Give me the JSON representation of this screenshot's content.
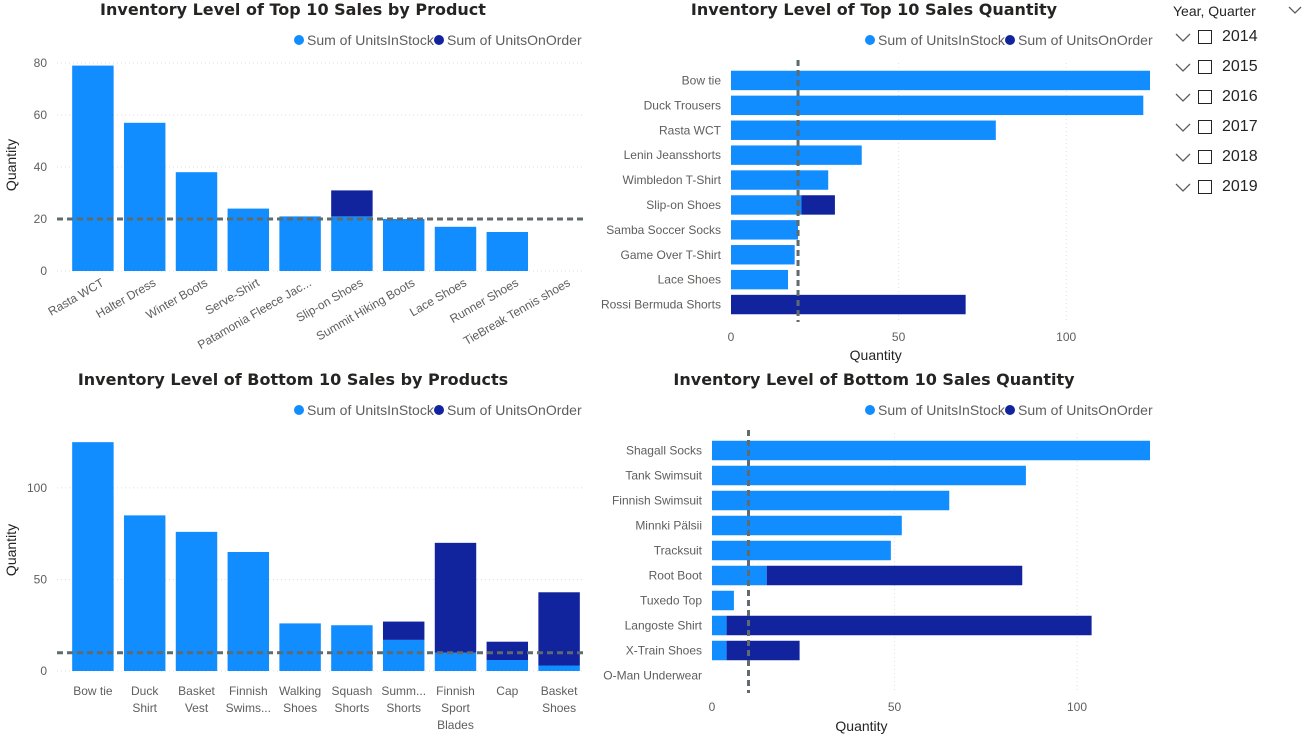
{
  "colors": {
    "stock": "#118DFF",
    "order": "#12239E",
    "axis": "#605E5C",
    "grid": "#E1DFDD",
    "refline": "#5F6B6D"
  },
  "slicer": {
    "header": "Year, Quarter",
    "items": [
      "2014",
      "2015",
      "2016",
      "2017",
      "2018",
      "2019"
    ]
  },
  "chart_data": [
    {
      "type": "bar",
      "orientation": "vertical",
      "stacked": true,
      "title": "Inventory Level of Top 10 Sales by Product",
      "legend": [
        "Sum of UnitsInStock",
        "Sum of UnitsOnOrder"
      ],
      "ylabel": "Quantity",
      "xlabel": "",
      "ylim": [
        0,
        80
      ],
      "yticks": [
        0,
        20,
        40,
        60,
        80
      ],
      "gridlines": true,
      "reference_line": 20,
      "categories": [
        "Rasta WCT",
        "Halter Dress",
        "Winter Boots",
        "Serve-Shirt",
        "Patamonia Fleece Jac...",
        "Slip-on Shoes",
        "Summit Hiking Boots",
        "Lace Shoes",
        "Runner Shoes",
        "TieBreak Tennis shoes"
      ],
      "series": [
        {
          "name": "Sum of UnitsInStock",
          "values": [
            79,
            57,
            38,
            24,
            21,
            21,
            20,
            17,
            15,
            0
          ]
        },
        {
          "name": "Sum of UnitsOnOrder",
          "values": [
            0,
            0,
            0,
            0,
            0,
            10,
            0,
            0,
            0,
            0
          ]
        }
      ]
    },
    {
      "type": "bar",
      "orientation": "horizontal",
      "stacked": true,
      "title": "Inventory Level of Top 10 Sales Quantity",
      "legend": [
        "Sum of UnitsInStock",
        "Sum of UnitsOnOrder"
      ],
      "xlabel": "Quantity",
      "ylabel": "",
      "xlim": [
        0,
        125
      ],
      "xticks": [
        0,
        50,
        100
      ],
      "gridlines": true,
      "reference_line": 20,
      "categories": [
        "Bow tie",
        "Duck Trousers",
        "Rasta WCT",
        "Lenin Jeansshorts",
        "Wimbledon T-Shirt",
        "Slip-on Shoes",
        "Samba Soccer Socks",
        "Game Over T-Shirt",
        "Lace Shoes",
        "Rossi Bermuda Shorts"
      ],
      "series": [
        {
          "name": "Sum of UnitsInStock",
          "values": [
            125,
            123,
            79,
            39,
            29,
            21,
            20,
            19,
            17,
            0
          ]
        },
        {
          "name": "Sum of UnitsOnOrder",
          "values": [
            0,
            0,
            0,
            0,
            0,
            10,
            0,
            0,
            0,
            70
          ]
        }
      ]
    },
    {
      "type": "bar",
      "orientation": "vertical",
      "stacked": true,
      "title": "Inventory Level of Bottom 10 Sales by Products",
      "legend": [
        "Sum of UnitsInStock",
        "Sum of UnitsOnOrder"
      ],
      "ylabel": "Quantity",
      "xlabel": "",
      "ylim": [
        0,
        130
      ],
      "yticks": [
        0,
        50,
        100
      ],
      "gridlines": true,
      "reference_line": 10,
      "categories": [
        [
          "Bow tie"
        ],
        [
          "Duck",
          "Shirt"
        ],
        [
          "Basket",
          "Vest"
        ],
        [
          "Finnish",
          "Swims..."
        ],
        [
          "Walking",
          "Shoes"
        ],
        [
          "Squash",
          "Shorts"
        ],
        [
          "Summ...",
          "Shorts"
        ],
        [
          "Finnish",
          "Sport",
          "Blades"
        ],
        [
          "Cap"
        ],
        [
          "Basket",
          "Shoes"
        ]
      ],
      "series": [
        {
          "name": "Sum of UnitsInStock",
          "values": [
            125,
            85,
            76,
            65,
            26,
            25,
            17,
            10,
            6,
            3
          ]
        },
        {
          "name": "Sum of UnitsOnOrder",
          "values": [
            0,
            0,
            0,
            0,
            0,
            0,
            10,
            60,
            10,
            40
          ]
        }
      ]
    },
    {
      "type": "bar",
      "orientation": "horizontal",
      "stacked": true,
      "title": "Inventory Level of Bottom 10 Sales Quantity",
      "legend": [
        "Sum of UnitsInStock",
        "Sum of UnitsOnOrder"
      ],
      "xlabel": "Quantity",
      "ylabel": "",
      "xlim": [
        0,
        120
      ],
      "xticks": [
        0,
        50,
        100
      ],
      "gridlines": true,
      "reference_line": 10,
      "categories": [
        "Shagall Socks",
        "Tank Swimsuit",
        "Finnish Swimsuit",
        "Minnki Pälsii",
        "Tracksuit",
        "Root Boot",
        "Tuxedo Top",
        "Langoste Shirt",
        "X-Train Shoes",
        "O-Man Underwear"
      ],
      "series": [
        {
          "name": "Sum of UnitsInStock",
          "values": [
            120,
            86,
            65,
            52,
            49,
            15,
            6,
            4,
            4,
            0
          ]
        },
        {
          "name": "Sum of UnitsOnOrder",
          "values": [
            0,
            0,
            0,
            0,
            0,
            70,
            0,
            100,
            20,
            0
          ]
        }
      ]
    }
  ]
}
